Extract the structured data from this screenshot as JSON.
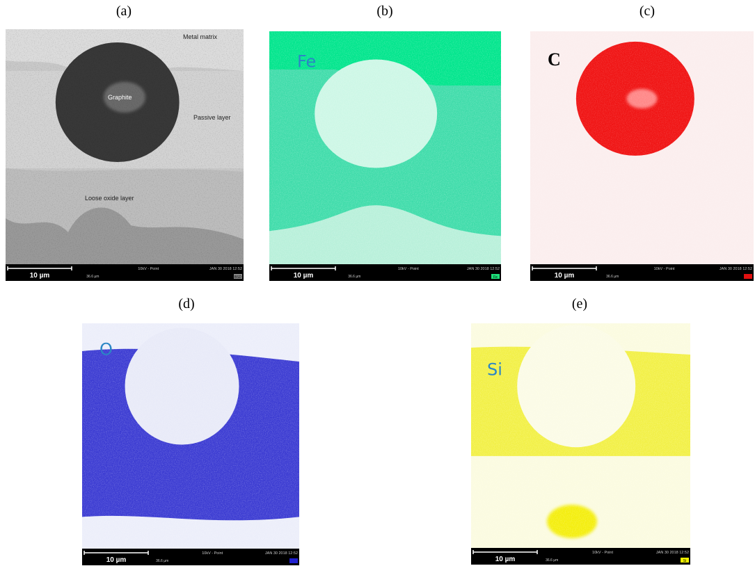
{
  "panels": [
    {
      "label": "(a)",
      "annotations": [
        "Metal matrix",
        "Graphite",
        "Passive layer",
        "Loose oxide layer"
      ],
      "footer": {
        "scale_bar": "10 µm",
        "mode": "10kV - Point",
        "date": "JAN 30 2018 12:52",
        "field_width": "36.6 µm",
        "chip": "BSD"
      }
    },
    {
      "label": "(b)",
      "element": "Fe",
      "footer": {
        "scale_bar": "10 µm",
        "mode": "10kV - Point",
        "date": "JAN 30 2018 12:52",
        "field_width": "36.6 µm",
        "chip": "Fe"
      }
    },
    {
      "label": "(c)",
      "element": "C",
      "footer": {
        "scale_bar": "10 µm",
        "mode": "10kV - Point",
        "date": "JAN 30 2018 12:52",
        "field_width": "36.6 µm"
      }
    },
    {
      "label": "(d)",
      "element": "O",
      "footer": {
        "scale_bar": "10 µm",
        "mode": "10kV - Point",
        "date": "JAN 30 2018 12:52",
        "field_width": "36.6 µm"
      }
    },
    {
      "label": "(e)",
      "element": "Si",
      "footer": {
        "scale_bar": "10 µm",
        "mode": "10kV - Point",
        "date": "JAN 30 2018 12:52",
        "field_width": "36.6 µm",
        "chip": "Si"
      }
    }
  ]
}
